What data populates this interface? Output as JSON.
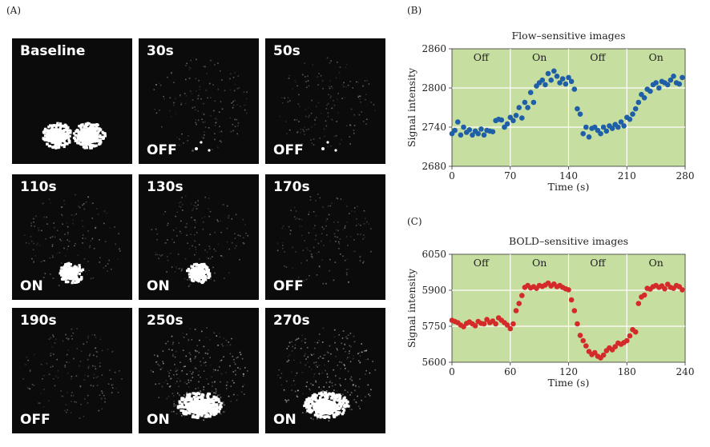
{
  "panelA": {
    "letter": "(A)",
    "tiles": [
      {
        "time": "Baseline",
        "state": "",
        "pattern": "baseline"
      },
      {
        "time": "30s",
        "state": "OFF",
        "pattern": "off-dots"
      },
      {
        "time": "50s",
        "state": "OFF",
        "pattern": "off-dots"
      },
      {
        "time": "110s",
        "state": "ON",
        "pattern": "on-small"
      },
      {
        "time": "130s",
        "state": "ON",
        "pattern": "on-small"
      },
      {
        "time": "170s",
        "state": "OFF",
        "pattern": "off-faint"
      },
      {
        "time": "190s",
        "state": "OFF",
        "pattern": "off-faint"
      },
      {
        "time": "250s",
        "state": "ON",
        "pattern": "on-large"
      },
      {
        "time": "270s",
        "state": "ON",
        "pattern": "on-large"
      }
    ]
  },
  "chart_data": [
    {
      "panel_letter": "(B)",
      "type": "scatter",
      "title": "Flow–sensitive images",
      "xlabel": "Time (s)",
      "ylabel": "Signal intensity",
      "xlim": [
        0,
        280
      ],
      "ylim": [
        2680,
        2860
      ],
      "xticks": [
        0,
        70,
        140,
        210,
        280
      ],
      "yticks": [
        2680,
        2740,
        2800,
        2860
      ],
      "grid": true,
      "background_color": "#c6dea0",
      "marker_color": "#1f5fa8",
      "period_labels": [
        {
          "text": "Off",
          "x": 35
        },
        {
          "text": "On",
          "x": 105
        },
        {
          "text": "Off",
          "x": 175
        },
        {
          "text": "On",
          "x": 245
        }
      ],
      "x": [
        0,
        3.5,
        7,
        10.5,
        14,
        17.5,
        21,
        24.5,
        28,
        31.5,
        35,
        38.5,
        42,
        45.5,
        49,
        52.5,
        56,
        59.5,
        63,
        66.5,
        70,
        73.5,
        77,
        80.5,
        84,
        87.5,
        91,
        94.5,
        98,
        101.5,
        105,
        108.5,
        112,
        115.5,
        119,
        122.5,
        126,
        129.5,
        133,
        136.5,
        140,
        143.5,
        147,
        150.5,
        154,
        157.5,
        161,
        164.5,
        168,
        171.5,
        175,
        178.5,
        182,
        185.5,
        189,
        192.5,
        196,
        199.5,
        203,
        206.5,
        210,
        213.5,
        217,
        220.5,
        224,
        227.5,
        231,
        234.5,
        238,
        241.5,
        245,
        248.5,
        252,
        255.5,
        259,
        262.5,
        266,
        269.5,
        273,
        276.5
      ],
      "y": [
        2730,
        2735,
        2748,
        2728,
        2740,
        2732,
        2736,
        2728,
        2734,
        2730,
        2737,
        2728,
        2735,
        2734,
        2733,
        2750,
        2752,
        2751,
        2740,
        2745,
        2755,
        2750,
        2758,
        2770,
        2754,
        2778,
        2770,
        2793,
        2778,
        2803,
        2808,
        2812,
        2805,
        2822,
        2812,
        2826,
        2818,
        2808,
        2814,
        2806,
        2816,
        2810,
        2798,
        2768,
        2760,
        2730,
        2740,
        2725,
        2738,
        2740,
        2735,
        2730,
        2740,
        2734,
        2742,
        2738,
        2744,
        2740,
        2748,
        2742,
        2755,
        2752,
        2760,
        2768,
        2778,
        2790,
        2785,
        2798,
        2795,
        2805,
        2808,
        2800,
        2810,
        2808,
        2805,
        2812,
        2818,
        2808,
        2806,
        2816
      ]
    },
    {
      "panel_letter": "(C)",
      "type": "scatter",
      "title": "BOLD–sensitive images",
      "xlabel": "Time (s)",
      "ylabel": "Signal intensity",
      "xlim": [
        0,
        240
      ],
      "ylim": [
        5600,
        6050
      ],
      "xticks": [
        0,
        60,
        120,
        180,
        240
      ],
      "yticks": [
        5600,
        5750,
        5900,
        6050
      ],
      "grid": true,
      "background_color": "#c6dea0",
      "marker_color": "#d42a2a",
      "period_labels": [
        {
          "text": "Off",
          "x": 30
        },
        {
          "text": "On",
          "x": 90
        },
        {
          "text": "Off",
          "x": 150
        },
        {
          "text": "On",
          "x": 210
        }
      ],
      "x": [
        0,
        3,
        6,
        9,
        12,
        15,
        18,
        21,
        24,
        27,
        30,
        33,
        36,
        39,
        42,
        45,
        48,
        51,
        54,
        57,
        60,
        63,
        66,
        69,
        72,
        75,
        78,
        81,
        84,
        87,
        90,
        93,
        96,
        99,
        102,
        105,
        108,
        111,
        114,
        117,
        120,
        123,
        126,
        129,
        132,
        135,
        138,
        141,
        144,
        147,
        150,
        153,
        156,
        159,
        162,
        165,
        168,
        171,
        174,
        177,
        180,
        183,
        186,
        189,
        192,
        195,
        198,
        201,
        204,
        207,
        210,
        213,
        216,
        219,
        222,
        225,
        228,
        231,
        234,
        237
      ],
      "y": [
        5775,
        5770,
        5765,
        5755,
        5748,
        5762,
        5768,
        5760,
        5752,
        5770,
        5762,
        5760,
        5778,
        5765,
        5772,
        5760,
        5785,
        5775,
        5765,
        5755,
        5740,
        5760,
        5815,
        5845,
        5878,
        5912,
        5920,
        5910,
        5915,
        5908,
        5920,
        5916,
        5922,
        5930,
        5918,
        5926,
        5915,
        5920,
        5912,
        5906,
        5902,
        5860,
        5815,
        5760,
        5712,
        5690,
        5668,
        5645,
        5632,
        5640,
        5625,
        5618,
        5630,
        5648,
        5660,
        5652,
        5665,
        5680,
        5675,
        5682,
        5690,
        5710,
        5736,
        5726,
        5845,
        5872,
        5880,
        5908,
        5905,
        5915,
        5920,
        5912,
        5918,
        5906,
        5925,
        5912,
        5908,
        5920,
        5915,
        5902
      ]
    }
  ]
}
